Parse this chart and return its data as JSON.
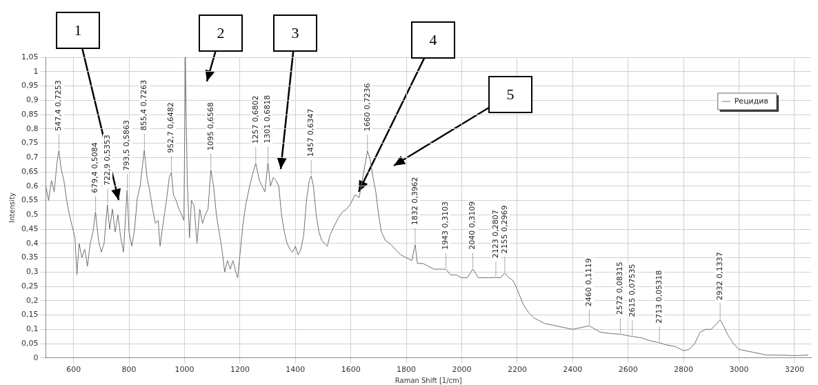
{
  "chart_data": {
    "type": "line",
    "xlabel": "Raman Shift [1/cm]",
    "ylabel": "Intensity",
    "legend": "top right",
    "grid": true,
    "marker": "none",
    "line_style": "solid",
    "xlim": [
      500,
      3260
    ],
    "xticks": [
      600,
      800,
      1000,
      1200,
      1400,
      1600,
      1800,
      2000,
      2200,
      2400,
      2600,
      2800,
      3000,
      3200
    ],
    "ylim": [
      0,
      1.05
    ],
    "yticks": [
      0,
      {
        "value": 0.05,
        "label": "0,05"
      },
      {
        "value": 0.1,
        "label": "0,1"
      },
      {
        "value": 0.15,
        "label": "0,15"
      },
      {
        "value": 0.2,
        "label": "0,2"
      },
      {
        "value": 0.25,
        "label": "0,25"
      },
      {
        "value": 0.3,
        "label": "0,3"
      },
      {
        "value": 0.35,
        "label": "0,35"
      },
      {
        "value": 0.4,
        "label": "0,4"
      },
      {
        "value": 0.45,
        "label": "0,45"
      },
      {
        "value": 0.5,
        "label": "0,5"
      },
      {
        "value": 0.55,
        "label": "0,55"
      },
      {
        "value": 0.6,
        "label": "0,6"
      },
      {
        "value": 0.65,
        "label": "0,65"
      },
      {
        "value": 0.7,
        "label": "0,7"
      },
      {
        "value": 0.75,
        "label": "0,75"
      },
      {
        "value": 0.8,
        "label": "0,8"
      },
      {
        "value": 0.85,
        "label": "0,85"
      },
      {
        "value": 0.9,
        "label": "0,9"
      },
      {
        "value": 0.95,
        "label": "0,95"
      },
      1,
      {
        "value": 1.05,
        "label": "1,05"
      }
    ],
    "series": [
      {
        "name": "Рецидив",
        "color": "#707070",
        "x": [
          500,
          510,
          520,
          530,
          540,
          547,
          555,
          565,
          575,
          585,
          595,
          605,
          612,
          620,
          630,
          640,
          650,
          660,
          670,
          679,
          690,
          700,
          710,
          722,
          730,
          740,
          750,
          760,
          770,
          780,
          793,
          800,
          810,
          820,
          830,
          840,
          855,
          865,
          875,
          885,
          895,
          905,
          912,
          920,
          935,
          945,
          953,
          960,
          970,
          980,
          990,
          998,
          1003,
          1006,
          1010,
          1018,
          1025,
          1035,
          1045,
          1055,
          1065,
          1075,
          1085,
          1095,
          1105,
          1115,
          1125,
          1135,
          1145,
          1155,
          1165,
          1175,
          1185,
          1192,
          1200,
          1210,
          1220,
          1235,
          1245,
          1257,
          1270,
          1280,
          1290,
          1301,
          1310,
          1320,
          1330,
          1340,
          1350,
          1360,
          1370,
          1380,
          1390,
          1400,
          1410,
          1420,
          1430,
          1440,
          1450,
          1457,
          1465,
          1475,
          1485,
          1495,
          1505,
          1515,
          1525,
          1540,
          1555,
          1570,
          1585,
          1600,
          1615,
          1630,
          1645,
          1660,
          1670,
          1680,
          1690,
          1700,
          1710,
          1725,
          1740,
          1760,
          1780,
          1800,
          1820,
          1832,
          1840,
          1860,
          1880,
          1900,
          1920,
          1943,
          1960,
          1980,
          2000,
          2020,
          2040,
          2060,
          2080,
          2100,
          2123,
          2140,
          2155,
          2170,
          2185,
          2200,
          2220,
          2240,
          2260,
          2280,
          2300,
          2350,
          2400,
          2460,
          2500,
          2540,
          2572,
          2615,
          2650,
          2680,
          2713,
          2740,
          2770,
          2800,
          2820,
          2840,
          2860,
          2880,
          2900,
          2920,
          2932,
          2945,
          2960,
          2980,
          3000,
          3050,
          3100,
          3150,
          3200,
          3250
        ],
        "values": [
          0.6,
          0.55,
          0.62,
          0.58,
          0.68,
          0.725,
          0.66,
          0.62,
          0.55,
          0.5,
          0.46,
          0.42,
          0.29,
          0.4,
          0.35,
          0.38,
          0.32,
          0.4,
          0.44,
          0.51,
          0.41,
          0.37,
          0.4,
          0.535,
          0.45,
          0.52,
          0.44,
          0.5,
          0.42,
          0.37,
          0.586,
          0.44,
          0.39,
          0.45,
          0.56,
          0.6,
          0.726,
          0.63,
          0.58,
          0.52,
          0.47,
          0.48,
          0.39,
          0.45,
          0.55,
          0.63,
          0.648,
          0.57,
          0.55,
          0.52,
          0.5,
          0.48,
          1.05,
          0.85,
          0.62,
          0.42,
          0.55,
          0.53,
          0.4,
          0.52,
          0.47,
          0.5,
          0.52,
          0.657,
          0.6,
          0.5,
          0.44,
          0.38,
          0.3,
          0.34,
          0.31,
          0.34,
          0.3,
          0.28,
          0.36,
          0.46,
          0.53,
          0.6,
          0.64,
          0.68,
          0.62,
          0.6,
          0.58,
          0.682,
          0.6,
          0.63,
          0.62,
          0.6,
          0.5,
          0.44,
          0.4,
          0.38,
          0.37,
          0.39,
          0.36,
          0.38,
          0.43,
          0.55,
          0.62,
          0.635,
          0.6,
          0.5,
          0.44,
          0.41,
          0.4,
          0.39,
          0.43,
          0.46,
          0.49,
          0.51,
          0.52,
          0.54,
          0.57,
          0.56,
          0.64,
          0.724,
          0.69,
          0.63,
          0.58,
          0.5,
          0.44,
          0.41,
          0.4,
          0.38,
          0.36,
          0.35,
          0.34,
          0.396,
          0.33,
          0.33,
          0.32,
          0.31,
          0.31,
          0.31,
          0.29,
          0.29,
          0.28,
          0.28,
          0.311,
          0.28,
          0.28,
          0.28,
          0.281,
          0.28,
          0.297,
          0.28,
          0.27,
          0.24,
          0.19,
          0.16,
          0.14,
          0.13,
          0.12,
          0.11,
          0.1,
          0.112,
          0.09,
          0.085,
          0.083,
          0.075,
          0.07,
          0.06,
          0.053,
          0.045,
          0.04,
          0.025,
          0.03,
          0.05,
          0.09,
          0.1,
          0.1,
          0.12,
          0.134,
          0.11,
          0.08,
          0.05,
          0.03,
          0.02,
          0.01,
          0.01,
          0.008,
          0.01
        ]
      }
    ],
    "annotations": [
      "1",
      "2",
      "3",
      {
        "text": "4",
        "x": 1628,
        "y": 0.58
      },
      "5",
      {
        "text": "547,4 0,7253",
        "x": 547.4,
        "y": 0.7253
      },
      {
        "text": "679,4 0,5084",
        "x": 679.4,
        "y": 0.5084
      },
      {
        "text": "722,9 0,5353",
        "x": 722.9,
        "y": 0.5353
      },
      {
        "text": "793,5 0,5863",
        "x": 793.5,
        "y": 0.5863
      },
      {
        "text": "855,4 0,7263",
        "x": 855.4,
        "y": 0.7263
      },
      {
        "text": "952,7 0,6482",
        "x": 952.7,
        "y": 0.6482
      },
      {
        "text": "1095 0,6568",
        "x": 1095,
        "y": 0.6568
      },
      {
        "text": "1257 0,6802",
        "x": 1257,
        "y": 0.6802
      },
      {
        "text": "1301 0,6818",
        "x": 1301,
        "y": 0.6818
      },
      {
        "text": "1457 0,6347",
        "x": 1457,
        "y": 0.6347
      },
      {
        "text": "1660 0,7236",
        "x": 1660,
        "y": 0.7236
      },
      {
        "text": "1832 0,3962",
        "x": 1832,
        "y": 0.3962
      },
      {
        "text": "1943 0,3103",
        "x": 1943,
        "y": 0.3103
      },
      {
        "text": "2040 0,3109",
        "x": 2040,
        "y": 0.3109
      },
      {
        "text": "2123 0,2807",
        "x": 2123,
        "y": 0.2807
      },
      {
        "text": "2155 0,2969",
        "x": 2155,
        "y": 0.2969
      },
      {
        "text": "2460 0,1119",
        "x": 2460,
        "y": 0.1119
      },
      {
        "text": "2572 0,08315",
        "x": 2572,
        "y": 0.08315
      },
      {
        "text": "2615 0,07535",
        "x": 2615,
        "y": 0.07535
      },
      {
        "text": "2713 0,05318",
        "x": 2713,
        "y": 0.05318
      },
      {
        "text": "2932 0,1337",
        "x": 2932,
        "y": 0.1337
      }
    ]
  }
}
